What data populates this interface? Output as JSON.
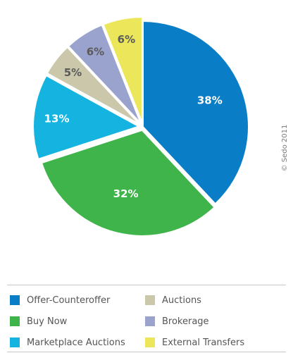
{
  "chart_data": {
    "type": "pie",
    "categories": [
      "Offer-Counteroffer",
      "Buy Now",
      "Marketplace Auctions",
      "Auctions",
      "Brokerage",
      "External Transfers"
    ],
    "values": [
      38,
      32,
      13,
      5,
      6,
      6
    ],
    "labels": [
      "38%",
      "32%",
      "13%",
      "5%",
      "6%",
      "6%"
    ],
    "colors": [
      "#0a7dc7",
      "#3fb44a",
      "#15b4e0",
      "#cbc7ab",
      "#9aa3ce",
      "#ece75a"
    ],
    "legend_placement": "bottom",
    "copyright": "© Sedo 2011"
  },
  "legend": {
    "col1": [
      "Offer-Counteroffer",
      "Buy Now",
      "Marketplace Auctions"
    ],
    "col2": [
      "Auctions",
      "Brokerage",
      "External Transfers"
    ]
  }
}
